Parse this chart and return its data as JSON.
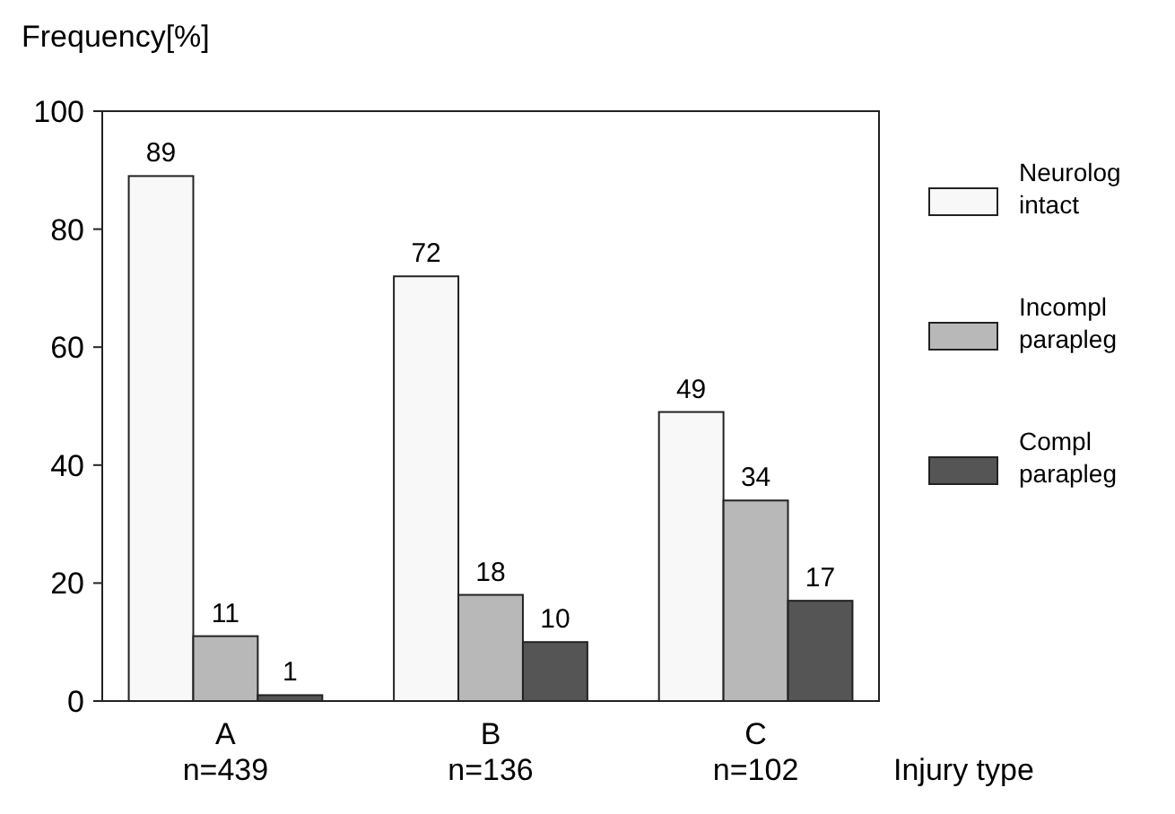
{
  "chart_data": {
    "type": "bar",
    "ylabel": "Frequency[%]",
    "xlabel": "Injury type",
    "categories": [
      "A\nn=439",
      "B\nn=136",
      "C\nn=102"
    ],
    "series": [
      {
        "name": "Neurolog\nintact",
        "color": "#f8f8f8",
        "values": [
          89,
          72,
          49
        ]
      },
      {
        "name": "Incompl\nparapleg",
        "color": "#b8b8b8",
        "values": [
          11,
          18,
          34
        ]
      },
      {
        "name": "Compl\nparapleg",
        "color": "#555555",
        "values": [
          1,
          10,
          17
        ]
      }
    ],
    "ylim": [
      0,
      100
    ],
    "yticks": [
      0,
      20,
      40,
      60,
      80,
      100
    ],
    "data_labels": true,
    "legend": "right",
    "grid": false
  }
}
